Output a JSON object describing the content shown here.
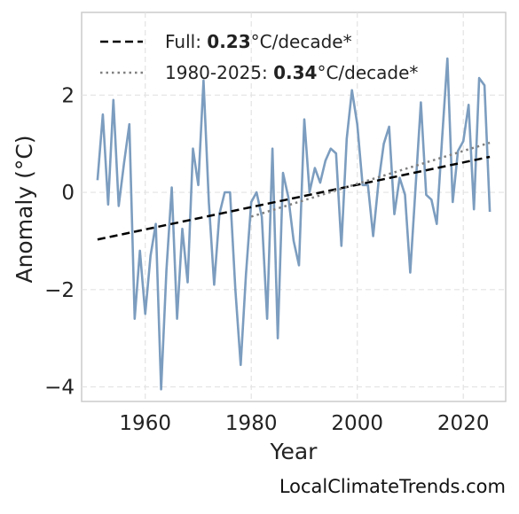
{
  "chart_data": {
    "type": "line",
    "xlabel": "Year",
    "ylabel": "Anomaly (°C)",
    "xlim": [
      1948,
      2028
    ],
    "ylim": [
      -4.3,
      3.7
    ],
    "xticks": [
      1960,
      1980,
      2000,
      2020
    ],
    "yticks": [
      -4,
      -2,
      0,
      2
    ],
    "ytick_labels": [
      "−4",
      "−2",
      "0",
      "2"
    ],
    "grid": true,
    "legend_position": "top-left",
    "series": [
      {
        "type": "line",
        "color": "#7c9dbf",
        "x": [
          1951,
          1952,
          1953,
          1954,
          1955,
          1956,
          1957,
          1958,
          1959,
          1960,
          1961,
          1962,
          1963,
          1964,
          1965,
          1966,
          1967,
          1968,
          1969,
          1970,
          1971,
          1972,
          1973,
          1974,
          1975,
          1976,
          1977,
          1978,
          1979,
          1980,
          1981,
          1982,
          1983,
          1984,
          1985,
          1986,
          1987,
          1988,
          1989,
          1990,
          1991,
          1992,
          1993,
          1994,
          1995,
          1996,
          1997,
          1998,
          1999,
          2000,
          2001,
          2002,
          2003,
          2004,
          2005,
          2006,
          2007,
          2008,
          2009,
          2010,
          2011,
          2012,
          2013,
          2014,
          2015,
          2016,
          2017,
          2018,
          2019,
          2020,
          2021,
          2022,
          2023,
          2024,
          2025
        ],
        "values": [
          0.25,
          1.6,
          -0.25,
          1.9,
          -0.28,
          0.6,
          1.4,
          -2.6,
          -1.2,
          -2.5,
          -1.3,
          -0.65,
          -4.05,
          -1.6,
          0.1,
          -2.6,
          -0.75,
          -1.85,
          0.9,
          0.15,
          2.3,
          -0.2,
          -1.9,
          -0.45,
          0.0,
          0.0,
          -2.0,
          -3.55,
          -1.7,
          -0.2,
          0.0,
          -0.5,
          -2.6,
          0.9,
          -3.0,
          0.4,
          -0.1,
          -1.0,
          -1.5,
          1.5,
          0.0,
          0.5,
          0.2,
          0.65,
          0.9,
          0.8,
          -1.1,
          1.1,
          2.1,
          1.4,
          0.15,
          0.15,
          -0.9,
          0.2,
          1.0,
          1.35,
          -0.45,
          0.3,
          -0.05,
          -1.65,
          0.1,
          1.85,
          -0.05,
          -0.15,
          -0.65,
          1.1,
          2.75,
          -0.2,
          0.85,
          1.05,
          1.8,
          -0.35,
          2.35,
          2.2,
          -0.4
        ]
      },
      {
        "name": "Full",
        "type": "trend",
        "style": "dashed",
        "color": "#000000",
        "x": [
          1951,
          2025
        ],
        "values": [
          -0.97,
          0.73
        ],
        "label_prefix": "Full: ",
        "rate": "0.23",
        "unit": "°C/decade*"
      },
      {
        "name": "1980-2025",
        "type": "trend",
        "style": "dotted",
        "color": "#808080",
        "x": [
          1980,
          2025
        ],
        "values": [
          -0.5,
          1.02
        ],
        "label_prefix": "1980-2025: ",
        "rate": "0.34",
        "unit": "°C/decade*"
      }
    ]
  },
  "credit": "LocalClimateTrends.com"
}
